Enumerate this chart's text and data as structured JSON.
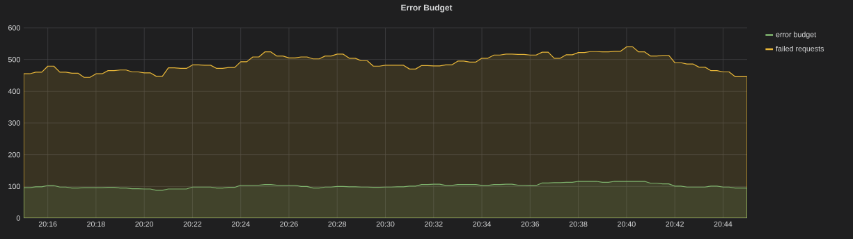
{
  "chart_data": {
    "type": "area",
    "title": "Error Budget",
    "x": [
      20.25,
      20.25417,
      20.25833,
      20.2625,
      20.26667,
      20.27083,
      20.275,
      20.27917,
      20.28333,
      20.2875,
      20.29167,
      20.29583,
      20.3,
      20.30417,
      20.30833,
      20.3125,
      20.31667,
      20.32083,
      20.325,
      20.32917,
      20.33333,
      20.3375,
      20.34167,
      20.34583,
      20.35,
      20.35417,
      20.35833,
      20.3625,
      20.36667,
      20.37083,
      20.375,
      20.37917,
      20.38333,
      20.3875,
      20.39167,
      20.39583,
      20.4,
      20.40417,
      20.40833,
      20.4125,
      20.41667,
      20.42083,
      20.425,
      20.42917,
      20.43333,
      20.4375,
      20.44167,
      20.44583,
      20.45,
      20.45417,
      20.45833,
      20.4625,
      20.46667,
      20.47083,
      20.475,
      20.47917,
      20.48333,
      20.4875,
      20.49167,
      20.49583,
      20.5,
      20.50417,
      20.50833,
      20.5125,
      20.51667,
      20.52083,
      20.525,
      20.52917,
      20.53333,
      20.5375,
      20.54167,
      20.54583,
      20.55,
      20.55417,
      20.55833,
      20.5625,
      20.56667,
      20.57083,
      20.575,
      20.57917,
      20.58333,
      20.5875,
      20.59167,
      20.59583,
      20.6,
      20.60417,
      20.60833,
      20.6125,
      20.61667,
      20.62083,
      20.625,
      20.62917,
      20.63333,
      20.6375,
      20.64167,
      20.64583,
      20.65,
      20.65417,
      20.65833,
      20.6625,
      20.66667,
      20.67083,
      20.675,
      20.67917,
      20.68333,
      20.6875,
      20.69167,
      20.69583,
      20.7,
      20.70417,
      20.70833,
      20.7125,
      20.71667,
      20.72083,
      20.725,
      20.72917,
      20.73333,
      20.7375,
      20.74167,
      20.74583,
      20.75
    ],
    "series": [
      {
        "name": "error budget",
        "color": "#7eb26d",
        "values": [
          96,
          96,
          99,
          99,
          103,
          103,
          98,
          98,
          95,
          95,
          96,
          96,
          96,
          96,
          97,
          97,
          95,
          95,
          93,
          93,
          92,
          92,
          88,
          88,
          92,
          92,
          92,
          92,
          98,
          98,
          98,
          98,
          95,
          95,
          97,
          97,
          104,
          104,
          104,
          104,
          106,
          106,
          104,
          104,
          104,
          104,
          100,
          100,
          95,
          95,
          98,
          98,
          100,
          100,
          99,
          99,
          98,
          98,
          97,
          97,
          98,
          98,
          99,
          99,
          101,
          101,
          106,
          106,
          107,
          107,
          103,
          103,
          106,
          106,
          106,
          106,
          103,
          103,
          106,
          106,
          107,
          107,
          104,
          104,
          103,
          103,
          111,
          111,
          112,
          112,
          113,
          113,
          116,
          116,
          116,
          116,
          113,
          113,
          116,
          116,
          116,
          116,
          116,
          116,
          110,
          110,
          108,
          108,
          101,
          101,
          98,
          98,
          98,
          98,
          101,
          101,
          98,
          98,
          95,
          95,
          95
        ]
      },
      {
        "name": "failed requests",
        "color": "#eab839",
        "values": [
          455,
          455,
          460,
          460,
          479,
          479,
          460,
          460,
          457,
          457,
          444,
          444,
          455,
          455,
          465,
          465,
          467,
          467,
          461,
          461,
          458,
          458,
          447,
          447,
          474,
          474,
          472,
          472,
          483,
          483,
          482,
          482,
          472,
          472,
          475,
          475,
          493,
          493,
          508,
          508,
          524,
          524,
          511,
          511,
          505,
          505,
          508,
          508,
          502,
          502,
          511,
          511,
          517,
          517,
          504,
          504,
          496,
          496,
          479,
          479,
          482,
          482,
          482,
          482,
          470,
          470,
          481,
          481,
          480,
          480,
          483,
          483,
          495,
          495,
          492,
          492,
          504,
          504,
          514,
          514,
          517,
          517,
          516,
          516,
          514,
          514,
          523,
          523,
          504,
          504,
          515,
          515,
          522,
          522,
          525,
          525,
          524,
          524,
          526,
          526,
          540,
          540,
          524,
          524,
          511,
          511,
          513,
          513,
          490,
          490,
          486,
          486,
          476,
          476,
          465,
          465,
          461,
          461,
          446,
          446,
          446
        ]
      }
    ],
    "xlim": [
      20.25,
      20.75
    ],
    "xticks": [
      {
        "value": 20.26667,
        "label": "20:16"
      },
      {
        "value": 20.3,
        "label": "20:18"
      },
      {
        "value": 20.33333,
        "label": "20:20"
      },
      {
        "value": 20.36667,
        "label": "20:22"
      },
      {
        "value": 20.4,
        "label": "20:24"
      },
      {
        "value": 20.43333,
        "label": "20:26"
      },
      {
        "value": 20.46667,
        "label": "20:28"
      },
      {
        "value": 20.5,
        "label": "20:30"
      },
      {
        "value": 20.53333,
        "label": "20:32"
      },
      {
        "value": 20.56667,
        "label": "20:34"
      },
      {
        "value": 20.6,
        "label": "20:36"
      },
      {
        "value": 20.63333,
        "label": "20:38"
      },
      {
        "value": 20.66667,
        "label": "20:40"
      },
      {
        "value": 20.7,
        "label": "20:42"
      },
      {
        "value": 20.73333,
        "label": "20:44"
      }
    ],
    "ylim": [
      0,
      600
    ],
    "yticks": [
      0,
      100,
      200,
      300,
      400,
      500,
      600
    ],
    "grid": true,
    "legend": "right"
  }
}
